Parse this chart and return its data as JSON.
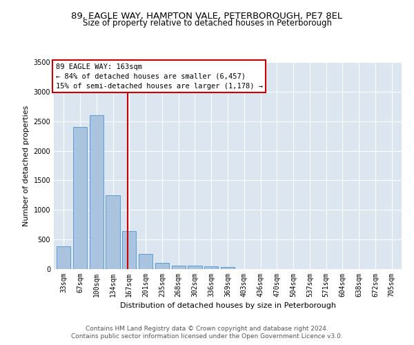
{
  "title1": "89, EAGLE WAY, HAMPTON VALE, PETERBOROUGH, PE7 8EL",
  "title2": "Size of property relative to detached houses in Peterborough",
  "xlabel": "Distribution of detached houses by size in Peterborough",
  "ylabel": "Number of detached properties",
  "categories": [
    "33sqm",
    "67sqm",
    "100sqm",
    "134sqm",
    "167sqm",
    "201sqm",
    "235sqm",
    "268sqm",
    "302sqm",
    "336sqm",
    "369sqm",
    "403sqm",
    "436sqm",
    "470sqm",
    "504sqm",
    "537sqm",
    "571sqm",
    "604sqm",
    "638sqm",
    "672sqm",
    "705sqm"
  ],
  "values": [
    390,
    2400,
    2600,
    1250,
    640,
    260,
    100,
    60,
    55,
    45,
    30,
    0,
    0,
    0,
    0,
    0,
    0,
    0,
    0,
    0,
    0
  ],
  "bar_color": "#aac4e0",
  "bar_edge_color": "#5b9bd5",
  "annotation_line_color": "#cc0000",
  "annotation_box_text": "89 EAGLE WAY: 163sqm\n← 84% of detached houses are smaller (6,457)\n15% of semi-detached houses are larger (1,178) →",
  "ylim": [
    0,
    3500
  ],
  "yticks": [
    0,
    500,
    1000,
    1500,
    2000,
    2500,
    3000,
    3500
  ],
  "footer1": "Contains HM Land Registry data © Crown copyright and database right 2024.",
  "footer2": "Contains public sector information licensed under the Open Government Licence v3.0.",
  "plot_bg_color": "#dce6f1",
  "title1_fontsize": 9.5,
  "title2_fontsize": 8.5,
  "annotation_fontsize": 7.5,
  "axis_label_fontsize": 8,
  "tick_fontsize": 7,
  "footer_fontsize": 6.5
}
